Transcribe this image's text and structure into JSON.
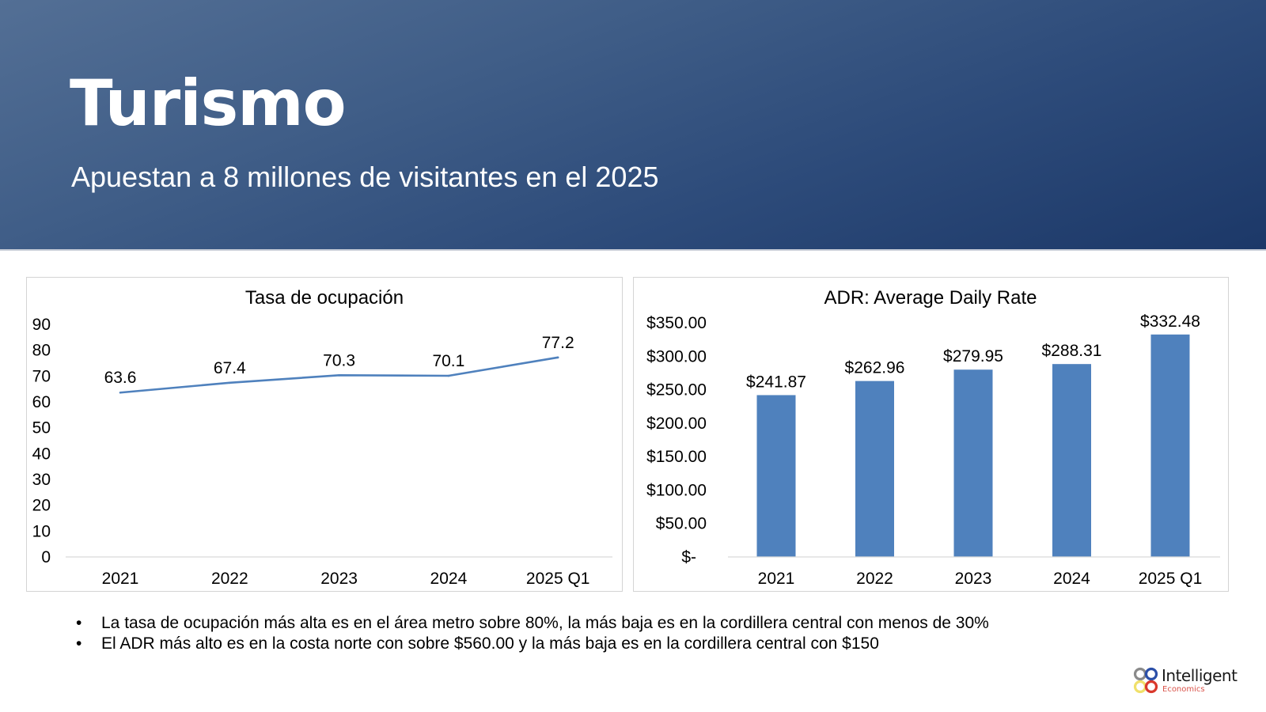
{
  "header": {
    "title": "Turismo",
    "subtitle": "Apuestan a 8 millones de visitantes en el 2025"
  },
  "colors": {
    "header_start": "#536f95",
    "header_end": "#1c3868",
    "series": "#4f81bd",
    "axis": "#d9d9d9"
  },
  "chart_data": [
    {
      "type": "line",
      "title": "Tasa de ocupación",
      "categories": [
        "2021",
        "2022",
        "2023",
        "2024",
        "2025 Q1"
      ],
      "values": [
        63.6,
        67.4,
        70.3,
        70.1,
        77.2
      ],
      "value_labels": [
        "63.6",
        "67.4",
        "70.3",
        "70.1",
        "77.2"
      ],
      "ylim": [
        0,
        90
      ],
      "yticks": [
        "0",
        "10",
        "20",
        "30",
        "40",
        "50",
        "60",
        "70",
        "80",
        "90"
      ],
      "xlabel": "",
      "ylabel": "",
      "grid": false,
      "legend": "none"
    },
    {
      "type": "bar",
      "title": "ADR: Average Daily Rate",
      "categories": [
        "2021",
        "2022",
        "2023",
        "2024",
        "2025 Q1"
      ],
      "values": [
        241.87,
        262.96,
        279.95,
        288.31,
        332.48
      ],
      "value_labels": [
        "$241.87",
        "$262.96",
        "$279.95",
        "$288.31",
        "$332.48"
      ],
      "ylim": [
        0,
        350
      ],
      "yticks": [
        "$-",
        "$50.00",
        "$100.00",
        "$150.00",
        "$200.00",
        "$250.00",
        "$300.00",
        "$350.00"
      ],
      "xlabel": "",
      "ylabel": "",
      "grid": false,
      "legend": "none"
    }
  ],
  "notes": {
    "bullet_symbol": "•",
    "items": [
      "La tasa de ocupación más alta es en el área metro sobre 80%, la más baja es en la cordillera central con menos de 30%",
      "El ADR más alto es en la costa norte con sobre $560.00 y la más baja es en la cordillera central con $150"
    ]
  },
  "logo": {
    "name": "Intelligent",
    "sub": "Economics"
  }
}
